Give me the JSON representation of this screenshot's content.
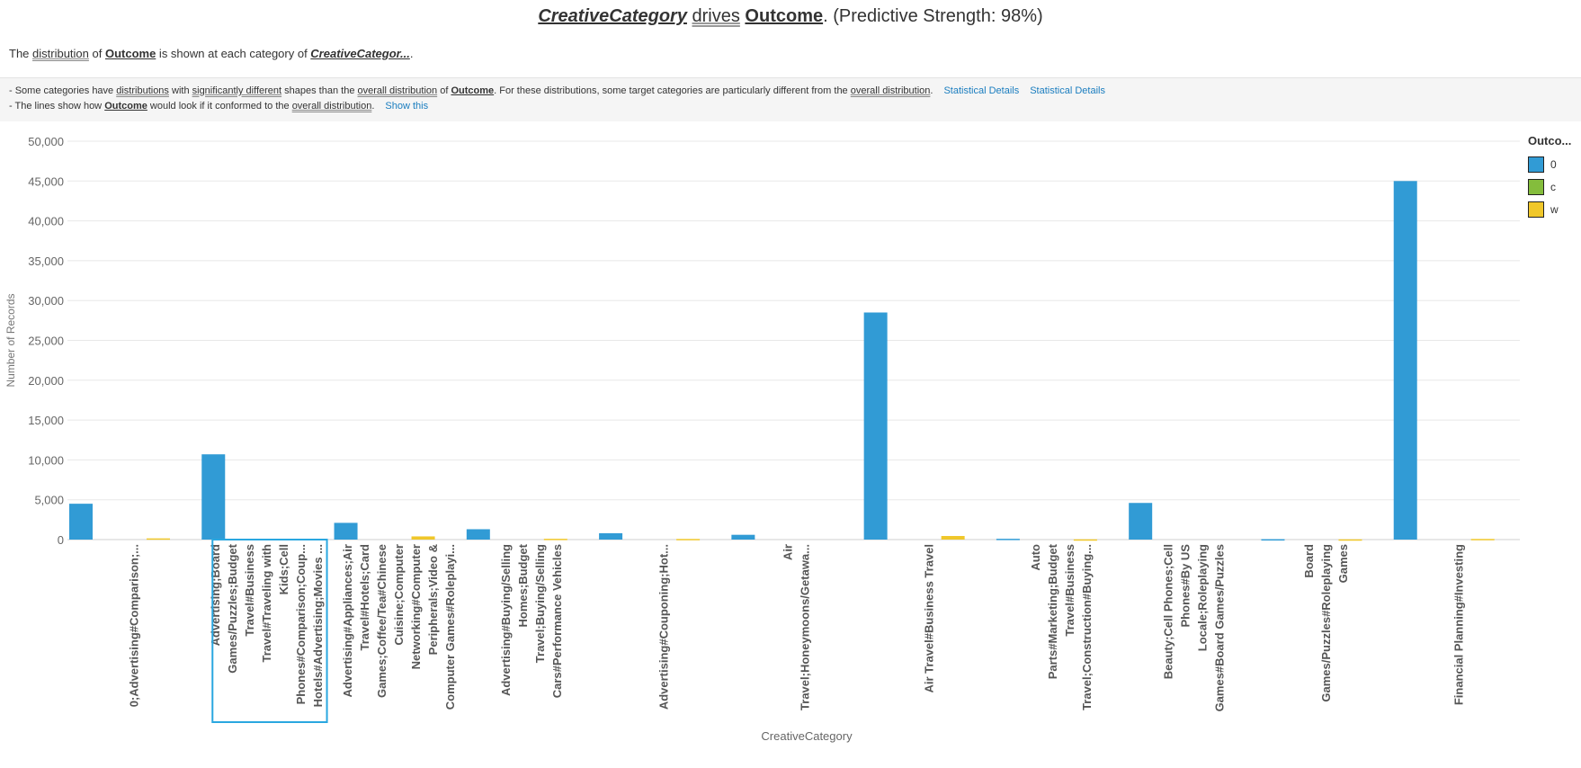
{
  "header": {
    "title_category": "CreativeCategory",
    "title_verb": "drives",
    "title_outcome": "Outcome",
    "title_tail": ". (Predictive Strength: 98%)"
  },
  "subtitle": {
    "pre": "The ",
    "distribution": "distribution",
    "of": " of ",
    "outcome": "Outcome",
    "mid": " is shown at each category of ",
    "category": "CreativeCategor...",
    "end": "."
  },
  "insights": {
    "line1": {
      "p1": "- Some categories have ",
      "distributions": "distributions",
      "with": " with ",
      "significantly_different": "significantly different",
      "p2": " shapes than the ",
      "overall_distribution": "overall distribution",
      "of": " of ",
      "outcome": "Outcome",
      "p3": ". For these distributions, some target categories are particularly different from the ",
      "overall_distribution2": "overall distribution",
      "end": ".",
      "link1": "Statistical Details",
      "link2": "Statistical Details"
    },
    "line2": {
      "p1": "- The lines show how ",
      "outcome": "Outcome",
      "p2": " would look if it conformed to the ",
      "overall_distribution": "overall distribution",
      "end": ".",
      "link": "Show this"
    }
  },
  "legend": {
    "title": "Outco...",
    "items": [
      {
        "label": "0",
        "color": "#319bd5"
      },
      {
        "label": "c",
        "color": "#84bd3c"
      },
      {
        "label": "w",
        "color": "#f0c72a"
      }
    ]
  },
  "chart_data": {
    "type": "bar",
    "title": "",
    "xlabel": "CreativeCategory",
    "ylabel": "Number of Records",
    "ylim": [
      0,
      50000
    ],
    "yticks": [
      "0",
      "5,000",
      "10,000",
      "15,000",
      "20,000",
      "25,000",
      "30,000",
      "35,000",
      "40,000",
      "45,000",
      "50,000"
    ],
    "grid": true,
    "legend_position": "top-right",
    "categories": [
      [
        "0;Advertising#Comparison;..."
      ],
      [
        "Advertising;Board",
        "Games/Puzzles;Budget",
        "Travel#Business",
        "Travel#Traveling with",
        "Kids;Cell",
        "Phones#Comparison;Coup...",
        "Hotels#Advertising;Movies ..."
      ],
      [
        "Advertising#Appliances;Air",
        "Travel#Hotels;Card",
        "Games;Coffee/Tea#Chinese",
        "Cuisine;Computer",
        "Networking#Computer",
        "Peripherals;Video &",
        "Computer Games#Roleplayi..."
      ],
      [
        "Advertising#Buying/Selling",
        "Homes;Budget",
        "Travel;Buying/Selling",
        "Cars#Performance Vehicles"
      ],
      [
        "Advertising#Couponing;Hot..."
      ],
      [
        "Air",
        "Travel;Honeymoons/Getawa..."
      ],
      [
        "Air Travel#Business Travel"
      ],
      [
        "Auto",
        "Parts#Marketing;Budget",
        "Travel#Business",
        "Travel;Construction#Buying..."
      ],
      [
        "Beauty;Cell Phones;Cell",
        "Phones#By US",
        "Locale;Roleplaying",
        "Games#Board Games/Puzzles"
      ],
      [
        "Board",
        "Games/Puzzles#Roleplaying",
        "Games"
      ],
      [
        "Financial Planning#Investing"
      ]
    ],
    "series": [
      {
        "name": "0",
        "values": [
          4500,
          10700,
          2100,
          1300,
          800,
          600,
          28500,
          100,
          4600,
          50,
          45000
        ]
      },
      {
        "name": "c",
        "values": [
          0,
          0,
          0,
          0,
          0,
          0,
          0,
          0,
          0,
          0,
          0
        ]
      },
      {
        "name": "w",
        "values": [
          150,
          0,
          400,
          100,
          80,
          0,
          450,
          30,
          0,
          30,
          80
        ]
      }
    ],
    "highlighted_category_index": 1
  }
}
